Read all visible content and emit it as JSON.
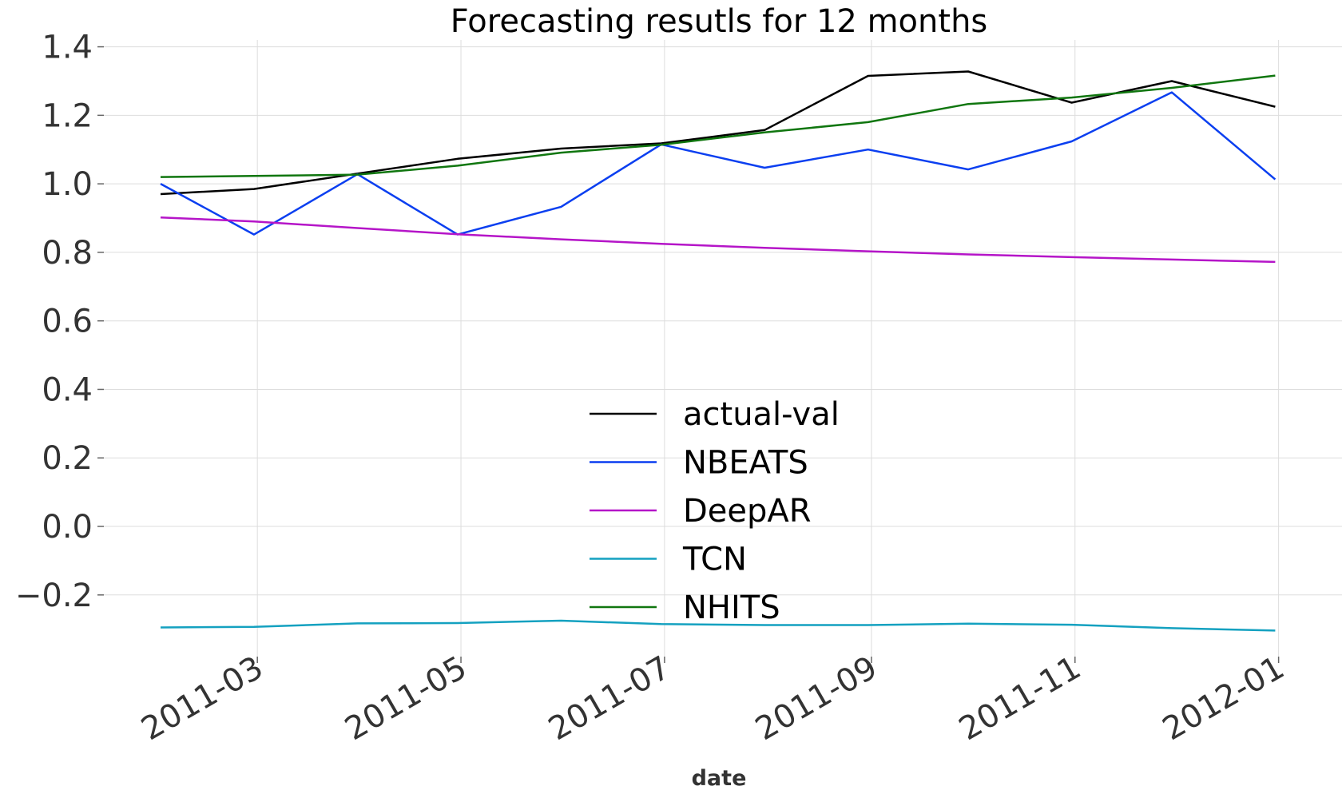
{
  "chart_data": {
    "type": "line",
    "title": "Forecasting resutls for 12 months",
    "xlabel": "date",
    "ylabel": "",
    "x": [
      "2011-01-31",
      "2011-02-28",
      "2011-03-31",
      "2011-04-30",
      "2011-05-31",
      "2011-06-30",
      "2011-07-31",
      "2011-08-31",
      "2011-09-30",
      "2011-10-31",
      "2011-11-30",
      "2011-12-31"
    ],
    "xticks": [
      "2011-03-01",
      "2011-05-01",
      "2011-07-01",
      "2011-09-01",
      "2011-11-01",
      "2012-01-01"
    ],
    "xtick_labels": [
      "2011-03",
      "2011-05",
      "2011-07",
      "2011-09",
      "2011-11",
      "2012-01"
    ],
    "xlim": [
      "2011-01-14",
      "2012-01-20"
    ],
    "yticks": [
      -0.2,
      0.0,
      0.2,
      0.4,
      0.6,
      0.8,
      1.0,
      1.2,
      1.4
    ],
    "ytick_labels": [
      "−0.2",
      "0.0",
      "0.2",
      "0.4",
      "0.6",
      "0.8",
      "1.0",
      "1.2",
      "1.4"
    ],
    "ylim": [
      -0.38,
      1.42
    ],
    "grid": true,
    "legend_position": "lower-center",
    "series": [
      {
        "name": "actual-val",
        "color": "#000000",
        "values": [
          0.97,
          0.985,
          1.03,
          1.073,
          1.103,
          1.118,
          1.157,
          1.315,
          1.328,
          1.237,
          1.3,
          1.225
        ]
      },
      {
        "name": "NBEATS",
        "color": "#0b3ff0",
        "values": [
          1.0,
          0.852,
          1.028,
          0.852,
          0.933,
          1.115,
          1.047,
          1.1,
          1.042,
          1.124,
          1.267,
          1.013
        ]
      },
      {
        "name": "DeepAR",
        "color": "#b515c8",
        "values": [
          0.902,
          0.89,
          0.871,
          0.853,
          0.838,
          0.825,
          0.813,
          0.803,
          0.794,
          0.786,
          0.779,
          0.772
        ]
      },
      {
        "name": "TCN",
        "color": "#14a1c0",
        "values": [
          -0.295,
          -0.293,
          -0.283,
          -0.282,
          -0.275,
          -0.285,
          -0.288,
          -0.288,
          -0.284,
          -0.287,
          -0.297,
          -0.304
        ]
      },
      {
        "name": "NHITS",
        "color": "#10760f",
        "values": [
          1.02,
          1.023,
          1.027,
          1.053,
          1.091,
          1.114,
          1.15,
          1.18,
          1.233,
          1.252,
          1.28,
          1.316
        ]
      }
    ]
  }
}
